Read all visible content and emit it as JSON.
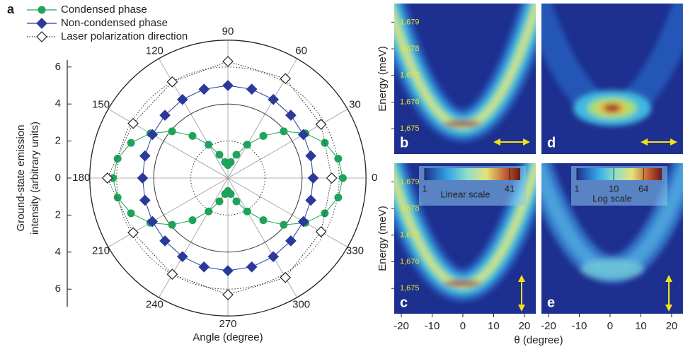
{
  "chart_data": [
    {
      "type": "polar",
      "panel": "a",
      "xlabel": "Angle (degree)",
      "ylabel": [
        "Ground-state emission",
        "intensity (arbitrary units)"
      ],
      "rlim": [
        0,
        7.45
      ],
      "rgrid": [
        2,
        4,
        6
      ],
      "rticks": [
        6,
        4,
        2,
        0,
        {
          "value": -2,
          "label": "2"
        },
        {
          "value": -4,
          "label": "4"
        },
        {
          "value": -6,
          "label": "6"
        }
      ],
      "angle_ticks": [
        0,
        30,
        60,
        90,
        120,
        150,
        180,
        210,
        240,
        270,
        300,
        330
      ],
      "series": [
        {
          "name": "Condensed phase",
          "color": "#1fa35a",
          "marker": "circle",
          "linestyle": "solid",
          "theta": [
            0,
            10,
            20,
            30,
            40,
            50,
            60,
            70,
            80,
            90,
            100,
            110,
            120,
            130,
            140,
            150,
            160,
            170,
            180,
            190,
            200,
            210,
            220,
            230,
            240,
            250,
            260,
            270,
            280,
            290,
            300,
            310,
            320,
            330,
            340,
            350
          ],
          "values": [
            6.2,
            6.04,
            5.56,
            4.83,
            3.93,
            2.97,
            2.08,
            1.34,
            0.87,
            0.7,
            0.87,
            1.34,
            2.08,
            2.97,
            3.93,
            4.83,
            5.56,
            6.04,
            6.2,
            6.04,
            5.56,
            4.83,
            3.93,
            2.97,
            2.08,
            1.34,
            0.87,
            0.7,
            0.87,
            1.34,
            2.08,
            2.97,
            3.93,
            4.83,
            5.56,
            6.04
          ]
        },
        {
          "name": "Non-condensed phase",
          "color": "#2b3a9a",
          "marker": "diamond",
          "linestyle": "solid",
          "theta": [
            0,
            15,
            30,
            45,
            60,
            75,
            90,
            105,
            120,
            135,
            150,
            165,
            180,
            195,
            210,
            225,
            240,
            255,
            270,
            285,
            300,
            315,
            330,
            345
          ],
          "values": [
            4.6,
            4.63,
            4.7,
            4.8,
            4.9,
            4.97,
            5.0,
            4.97,
            4.9,
            4.8,
            4.7,
            4.63,
            4.6,
            4.63,
            4.7,
            4.8,
            4.9,
            4.97,
            5.0,
            4.97,
            4.9,
            4.8,
            4.7,
            4.63
          ]
        },
        {
          "name": "Laser polarization direction",
          "color": "#222222",
          "marker": "open-diamond",
          "linestyle": "dotted",
          "theta": [
            0,
            30,
            60,
            90,
            120,
            150,
            180,
            210,
            240,
            270,
            300,
            330
          ],
          "values": [
            5.6,
            5.8,
            6.2,
            6.3,
            6.0,
            5.9,
            6.5,
            5.9,
            6.0,
            6.3,
            6.2,
            5.8
          ]
        }
      ]
    },
    {
      "type": "heatmap",
      "panel": "b",
      "ylabel": "Energy (meV)",
      "arrow": "horizontal",
      "xlim": [
        -22.3,
        23.7
      ],
      "ylim": [
        1674.05,
        1679.7
      ],
      "yticks": [
        {
          "value": 1679,
          "label": "1,679"
        },
        {
          "value": 1678,
          "label": "1,678"
        },
        {
          "value": 1677,
          "label": "1,677"
        },
        {
          "value": 1676,
          "label": "1,676"
        },
        {
          "value": 1675,
          "label": "1,675"
        }
      ]
    },
    {
      "type": "heatmap",
      "panel": "d",
      "arrow": "horizontal",
      "xlim": [
        -22.3,
        23.7
      ]
    },
    {
      "type": "heatmap",
      "panel": "c",
      "ylabel": "Energy (meV)",
      "arrow": "vertical",
      "xlabel": "θ (degree)",
      "xlim": [
        -22.3,
        23.7
      ],
      "xticks": [
        -20,
        -10,
        0,
        10,
        20
      ],
      "ylim": [
        1674.05,
        1679.7
      ],
      "yticks": [
        {
          "value": 1679,
          "label": "1,679"
        },
        {
          "value": 1678,
          "label": "1,678"
        },
        {
          "value": 1677,
          "label": "1,677"
        },
        {
          "value": 1676,
          "label": "1,676"
        },
        {
          "value": 1675,
          "label": "1,675"
        }
      ],
      "colorbar": {
        "label": "Linear scale",
        "log": false,
        "lim": [
          1,
          46
        ],
        "ticks": [
          1,
          41
        ]
      }
    },
    {
      "type": "heatmap",
      "panel": "e",
      "arrow": "vertical",
      "xlim": [
        -22.3,
        23.7
      ],
      "xticks": [
        -20,
        -10,
        0,
        10,
        20
      ],
      "colorbar": {
        "label": "Log scale",
        "log": true,
        "lim": [
          1,
          200
        ],
        "ticks": [
          1,
          10,
          64
        ]
      }
    }
  ]
}
